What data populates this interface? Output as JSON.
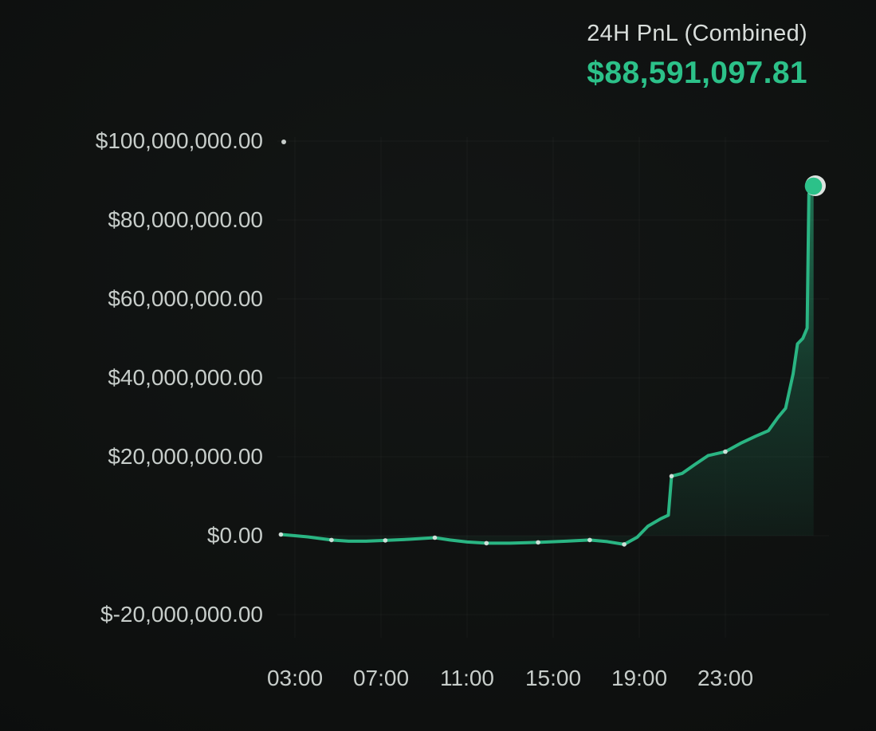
{
  "header": {
    "title": "24H PnL (Combined)",
    "value": "$88,591,097.81"
  },
  "colors": {
    "bg_center": "#131615",
    "bg_mid": "#0d0f0e",
    "bg_edge": "#080a09",
    "accent_green": "#2cc189",
    "line_green": "#2ab583",
    "text_light": "#d8ddda",
    "axis_text": "#c7cdca",
    "marker_ring": "#dde3e0",
    "dot_color": "#dfe5e2"
  },
  "chart_data": {
    "type": "area",
    "title": "24H PnL (Combined)",
    "current_value": 88591097.81,
    "legend": "none",
    "grid": "faint",
    "x_ticks": [
      "03:00",
      "07:00",
      "11:00",
      "15:00",
      "19:00",
      "23:00"
    ],
    "x_tick_hours": [
      3,
      7,
      11,
      15,
      19,
      23
    ],
    "y_ticks": [
      "$100,000,000.00",
      "$80,000,000.00",
      "$60,000,000.00",
      "$40,000,000.00",
      "$20,000,000.00",
      "$0.00",
      "$-20,000,000.00"
    ],
    "y_tick_values": [
      100000000,
      80000000,
      60000000,
      40000000,
      20000000,
      0,
      -20000000
    ],
    "ylim": [
      -20000000,
      100000000
    ],
    "xlim_hours": [
      2.2,
      27.6
    ],
    "series": [
      {
        "name": "24H PnL (Combined)",
        "points": [
          [
            2.35,
            300000
          ],
          [
            3.0,
            0
          ],
          [
            3.6,
            -300000
          ],
          [
            4.7,
            -1100000
          ],
          [
            5.5,
            -1400000
          ],
          [
            6.3,
            -1400000
          ],
          [
            7.2,
            -1200000
          ],
          [
            8.3,
            -900000
          ],
          [
            9.5,
            -500000
          ],
          [
            10.2,
            -1100000
          ],
          [
            11.0,
            -1600000
          ],
          [
            11.9,
            -1900000
          ],
          [
            13.0,
            -1900000
          ],
          [
            14.3,
            -1700000
          ],
          [
            15.6,
            -1400000
          ],
          [
            16.7,
            -1100000
          ],
          [
            17.5,
            -1500000
          ],
          [
            18.3,
            -2200000
          ],
          [
            18.9,
            -400000
          ],
          [
            19.4,
            2400000
          ],
          [
            20.0,
            4300000
          ],
          [
            20.35,
            5200000
          ],
          [
            20.5,
            15100000
          ],
          [
            21.0,
            15800000
          ],
          [
            21.6,
            18100000
          ],
          [
            22.2,
            20300000
          ],
          [
            23.0,
            21300000
          ],
          [
            23.7,
            23400000
          ],
          [
            24.4,
            25200000
          ],
          [
            25.0,
            26600000
          ],
          [
            25.45,
            30000000
          ],
          [
            25.8,
            32300000
          ],
          [
            26.15,
            41000000
          ],
          [
            26.35,
            48600000
          ],
          [
            26.6,
            50000000
          ],
          [
            26.8,
            52600000
          ],
          [
            26.88,
            86500000
          ],
          [
            27.0,
            88200000
          ],
          [
            27.1,
            88591097.81
          ]
        ],
        "marker_points": [
          [
            2.35,
            300000
          ],
          [
            4.7,
            -1100000
          ],
          [
            7.2,
            -1200000
          ],
          [
            9.5,
            -500000
          ],
          [
            11.9,
            -1900000
          ],
          [
            14.3,
            -1700000
          ],
          [
            16.7,
            -1100000
          ],
          [
            18.3,
            -2200000
          ],
          [
            20.5,
            15100000
          ],
          [
            23.0,
            21300000
          ]
        ]
      }
    ]
  }
}
